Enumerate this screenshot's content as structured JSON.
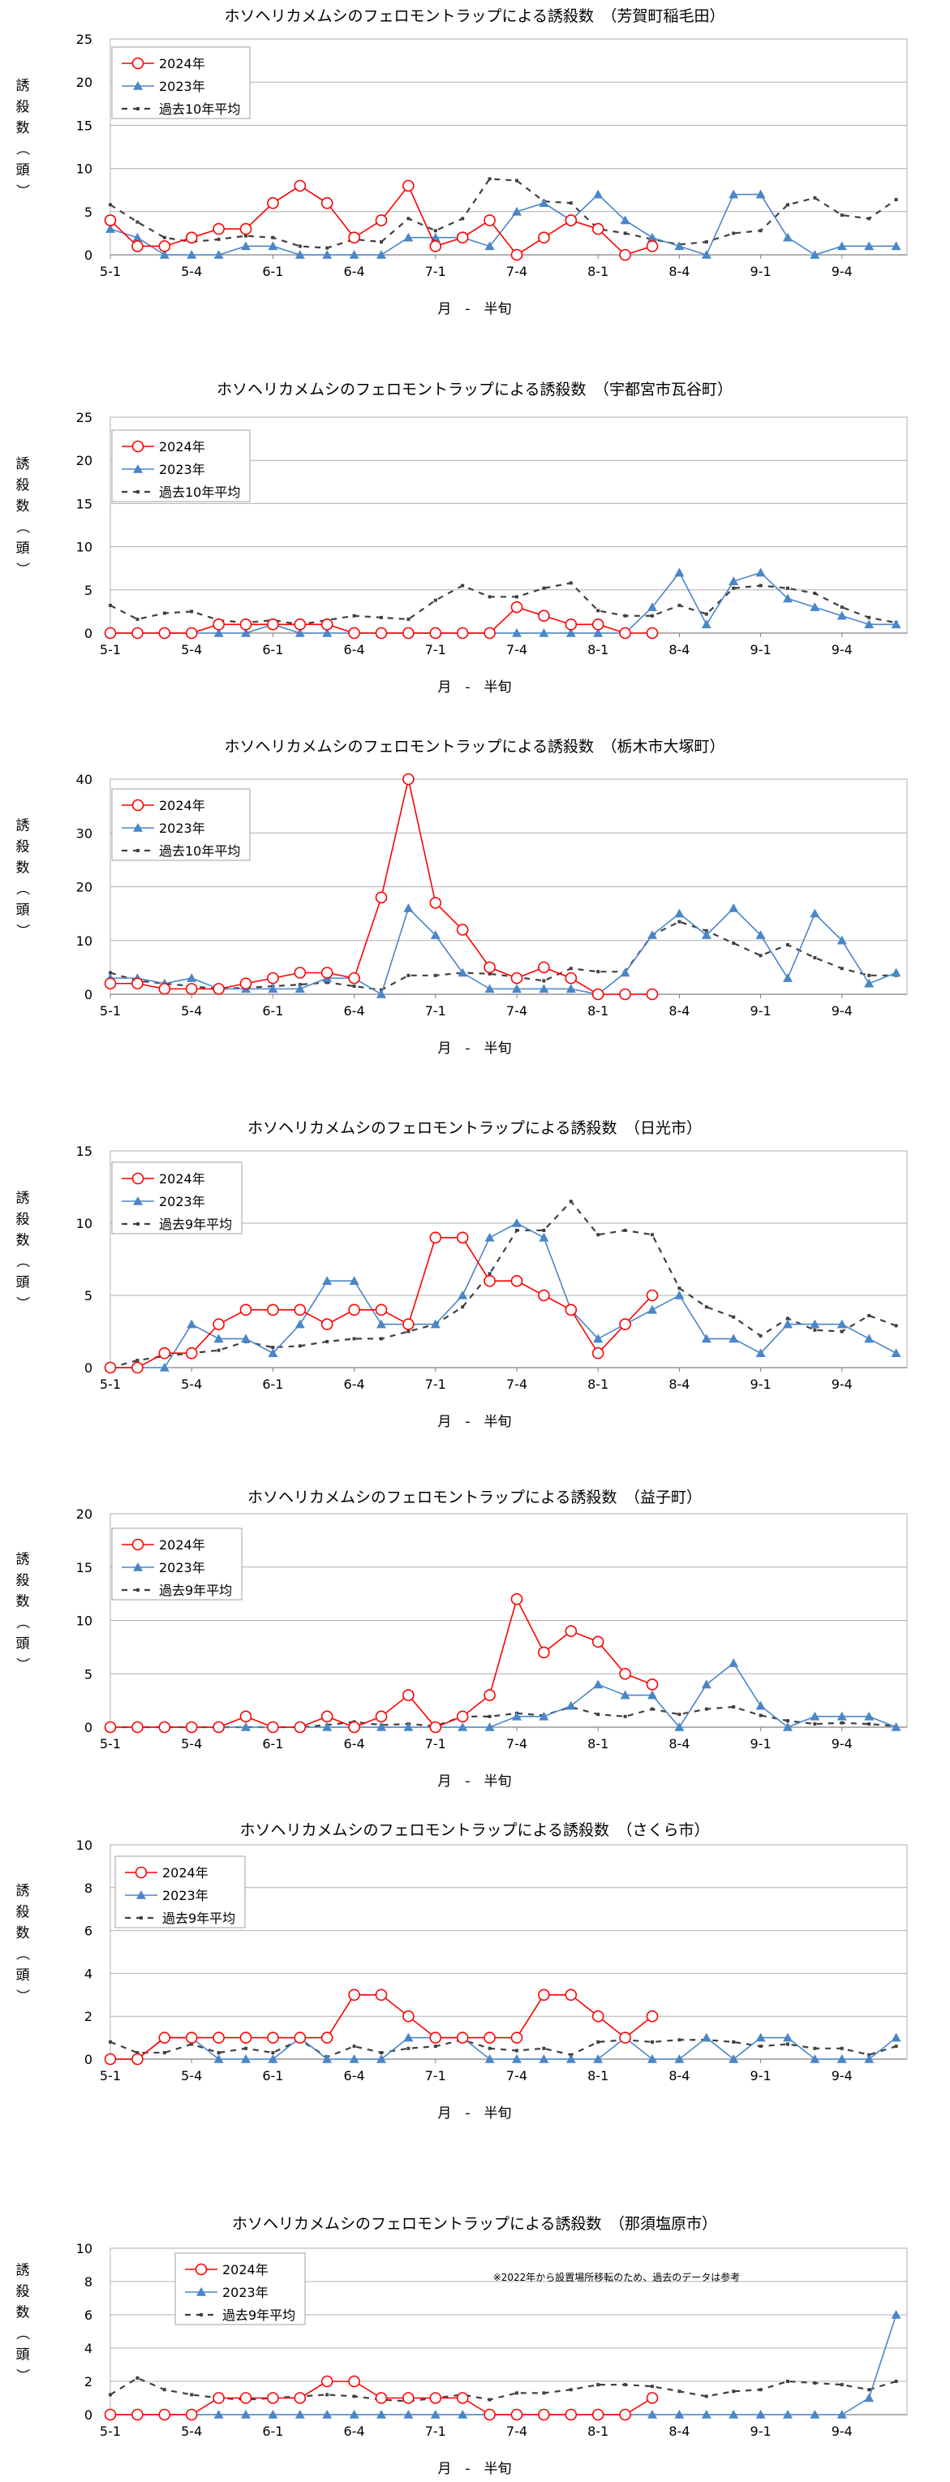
{
  "colors": {
    "y2024": "#ff0000",
    "y2023": "#4a86c8",
    "avg": "#404040",
    "grid": "#b0b0b0"
  },
  "chart_data": [
    {
      "type": "line",
      "title": "ホソヘリカメムシのフェロモントラップによる誘殺数　（芳賀町稲毛田）",
      "xlabel": "月　-　半旬",
      "ylabel": [
        "誘",
        "殺",
        "数",
        "（",
        "頭",
        "）"
      ],
      "ylim": [
        0,
        25
      ],
      "yticks": [
        "0",
        "5",
        "10",
        "15",
        "20",
        "25"
      ],
      "xticks": [
        "5-1",
        "5-4",
        "6-1",
        "6-4",
        "7-1",
        "7-4",
        "8-1",
        "8-4",
        "9-1",
        "9-4"
      ],
      "legend": "top-left",
      "note": "",
      "series": [
        {
          "name": "2024年",
          "values": [
            4,
            1,
            1,
            2,
            3,
            3,
            6,
            8,
            6,
            2,
            4,
            8,
            1,
            2,
            4,
            0,
            2,
            4,
            3,
            0,
            1
          ]
        },
        {
          "name": "2023年",
          "values": [
            3,
            2,
            0,
            0,
            0,
            1,
            1,
            0,
            0,
            0,
            0,
            2,
            2,
            2,
            1,
            5,
            6,
            4,
            7,
            4,
            2,
            1,
            0,
            7,
            7,
            2,
            0,
            1,
            1,
            1
          ]
        },
        {
          "name": "過去10年平均",
          "values": [
            5.8,
            3.8,
            2,
            1.5,
            1.8,
            2.2,
            2,
            1,
            0.8,
            1.8,
            1.5,
            4.2,
            2.8,
            4.2,
            8.8,
            8.6,
            6.2,
            6,
            3,
            2.5,
            1.8,
            1.2,
            1.5,
            2.5,
            2.8,
            5.8,
            6.6,
            4.6,
            4.2,
            6.4
          ]
        }
      ]
    },
    {
      "type": "line",
      "title": "ホソヘリカメムシのフェロモントラップによる誘殺数　（宇都宮市瓦谷町）",
      "xlabel": "月　-　半旬",
      "ylabel": [
        "誘",
        "殺",
        "数",
        "（",
        "頭",
        "）"
      ],
      "ylim": [
        0,
        25
      ],
      "yticks": [
        "0",
        "5",
        "10",
        "15",
        "20",
        "25"
      ],
      "xticks": [
        "5-1",
        "5-4",
        "6-1",
        "6-4",
        "7-1",
        "7-4",
        "8-1",
        "8-4",
        "9-1",
        "9-4"
      ],
      "legend": "top-left",
      "note": "",
      "series": [
        {
          "name": "2024年",
          "values": [
            0,
            0,
            0,
            0,
            1,
            1,
            1,
            1,
            1,
            0,
            0,
            0,
            0,
            0,
            0,
            3,
            2,
            1,
            1,
            0,
            0
          ]
        },
        {
          "name": "2023年",
          "values": [
            0,
            0,
            0,
            0,
            0,
            0,
            1,
            0,
            0,
            0,
            0,
            0,
            0,
            0,
            0,
            0,
            0,
            0,
            0,
            0,
            3,
            7,
            1,
            6,
            7,
            4,
            3,
            2,
            1,
            1
          ]
        },
        {
          "name": "過去10年平均",
          "values": [
            3.2,
            1.6,
            2.3,
            2.5,
            1.5,
            1.2,
            1.5,
            1,
            1.5,
            2,
            1.8,
            1.6,
            3.8,
            5.5,
            4.2,
            4.2,
            5.2,
            5.8,
            2.6,
            2.0,
            2.0,
            3.2,
            2.2,
            5.2,
            5.5,
            5.2,
            4.6,
            3.0,
            1.8,
            1.2
          ]
        }
      ]
    },
    {
      "type": "line",
      "title": "ホソヘリカメムシのフェロモントラップによる誘殺数　（栃木市大塚町）",
      "xlabel": "月　-　半旬",
      "ylabel": [
        "誘",
        "殺",
        "数",
        "（",
        "頭",
        "）"
      ],
      "ylim": [
        0,
        40
      ],
      "yticks": [
        "0",
        "10",
        "20",
        "30",
        "40"
      ],
      "xticks": [
        "5-1",
        "5-4",
        "6-1",
        "6-4",
        "7-1",
        "7-4",
        "8-1",
        "8-4",
        "9-1",
        "9-4"
      ],
      "legend": "top-left",
      "note": "",
      "series": [
        {
          "name": "2024年",
          "values": [
            2,
            2,
            1,
            1,
            1,
            2,
            3,
            4,
            4,
            3,
            18,
            40,
            17,
            12,
            5,
            3,
            5,
            3,
            0,
            0,
            0
          ]
        },
        {
          "name": "2023年",
          "values": [
            3,
            3,
            2,
            3,
            1,
            1,
            1,
            1,
            3,
            3,
            0,
            16,
            11,
            4,
            1,
            1,
            1,
            1,
            0,
            4,
            11,
            15,
            11,
            16,
            11,
            3,
            15,
            10,
            2,
            4
          ]
        },
        {
          "name": "過去10年平均",
          "values": [
            4,
            2.5,
            2,
            1.5,
            1,
            1.2,
            1.5,
            1.8,
            2.2,
            1.5,
            0.8,
            3.5,
            3.5,
            4,
            3.8,
            3.2,
            2.5,
            4.8,
            4.2,
            4.2,
            11,
            13.5,
            11.8,
            9.5,
            7.2,
            9.2,
            6.8,
            4.8,
            3.5,
            3.5
          ]
        }
      ]
    },
    {
      "type": "line",
      "title": "ホソヘリカメムシのフェロモントラップによる誘殺数　（日光市）",
      "xlabel": "月　-　半旬",
      "ylabel": [
        "誘",
        "殺",
        "数",
        "（",
        "頭",
        "）"
      ],
      "ylim": [
        0,
        15
      ],
      "yticks": [
        "0",
        "5",
        "10",
        "15"
      ],
      "xticks": [
        "5-1",
        "5-4",
        "6-1",
        "6-4",
        "7-1",
        "7-4",
        "8-1",
        "8-4",
        "9-1",
        "9-4"
      ],
      "legend": "top-left",
      "note": "",
      "series": [
        {
          "name": "2024年",
          "values": [
            0,
            0,
            1,
            1,
            3,
            4,
            4,
            4,
            3,
            4,
            4,
            3,
            9,
            9,
            6,
            6,
            5,
            4,
            1,
            3,
            5
          ]
        },
        {
          "name": "2023年",
          "values": [
            0,
            0,
            0,
            3,
            2,
            2,
            1,
            3,
            6,
            6,
            3,
            3,
            3,
            5,
            9,
            10,
            9,
            4,
            2,
            3,
            4,
            5,
            2,
            2,
            1,
            3,
            3,
            3,
            2,
            1
          ]
        },
        {
          "name": "過去9年平均",
          "values": [
            0,
            0.5,
            0.8,
            1.0,
            1.2,
            1.8,
            1.4,
            1.5,
            1.8,
            2,
            2,
            2.5,
            3.0,
            4.2,
            6.5,
            9.5,
            9.5,
            11.5,
            9.2,
            9.5,
            9.2,
            5.5,
            4.2,
            3.5,
            2.2,
            3.4,
            2.6,
            2.5,
            3.6,
            2.9
          ]
        }
      ]
    },
    {
      "type": "line",
      "title": "ホソヘリカメムシのフェロモントラップによる誘殺数　（益子町）",
      "xlabel": "月　-　半旬",
      "ylabel": [
        "誘",
        "殺",
        "数",
        "（",
        "頭",
        "）"
      ],
      "ylim": [
        0,
        20
      ],
      "yticks": [
        "0",
        "5",
        "10",
        "15",
        "20"
      ],
      "xticks": [
        "5-1",
        "5-4",
        "6-1",
        "6-4",
        "7-1",
        "7-4",
        "8-1",
        "8-4",
        "9-1",
        "9-4"
      ],
      "legend": "top-left",
      "note": "",
      "series": [
        {
          "name": "2024年",
          "values": [
            0,
            0,
            0,
            0,
            0,
            1,
            0,
            0,
            1,
            0,
            1,
            3,
            0,
            1,
            3,
            12,
            7,
            9,
            8,
            5,
            4
          ]
        },
        {
          "name": "2023年",
          "values": [
            0,
            0,
            0,
            0,
            0,
            0,
            0,
            0,
            0,
            0,
            0,
            0,
            0,
            0,
            0,
            1,
            1,
            2,
            4,
            3,
            3,
            0,
            4,
            6,
            2,
            0,
            1,
            1,
            1,
            0
          ]
        },
        {
          "name": "過去9年平均",
          "values": [
            0,
            0,
            0,
            0,
            0,
            0,
            0,
            0,
            0.2,
            0.5,
            0.2,
            0.3,
            0.1,
            1.0,
            1.0,
            1.3,
            1.1,
            1.9,
            1.2,
            1.0,
            1.7,
            1.2,
            1.7,
            1.9,
            1.1,
            0.6,
            0.3,
            0.4,
            0.3,
            0.1
          ]
        }
      ]
    },
    {
      "type": "line",
      "title": "ホソヘリカメムシのフェロモントラップによる誘殺数　（さくら市）",
      "xlabel": "月　-　半旬",
      "ylabel": [
        "誘",
        "殺",
        "数",
        "（",
        "頭",
        "）"
      ],
      "ylim": [
        0,
        10
      ],
      "yticks": [
        "0",
        "2",
        "4",
        "6",
        "8",
        "10"
      ],
      "xticks": [
        "5-1",
        "5-4",
        "6-1",
        "6-4",
        "7-1",
        "7-4",
        "8-1",
        "8-4",
        "9-1",
        "9-4"
      ],
      "legend": "top-left",
      "note": "",
      "series": [
        {
          "name": "2024年",
          "values": [
            0,
            0,
            1,
            1,
            1,
            1,
            1,
            1,
            1,
            3,
            3,
            2,
            1,
            1,
            1,
            1,
            3,
            3,
            2,
            1,
            2
          ]
        },
        {
          "name": "2023年",
          "values": [
            0,
            0,
            1,
            1,
            0,
            0,
            0,
            1,
            0,
            0,
            0,
            1,
            1,
            1,
            0,
            0,
            0,
            0,
            0,
            1,
            0,
            0,
            1,
            0,
            1,
            1,
            0,
            0,
            0,
            1
          ]
        },
        {
          "name": "過去9年平均",
          "values": [
            0.8,
            0.3,
            0.3,
            0.7,
            0.3,
            0.5,
            0.3,
            0.9,
            0.1,
            0.6,
            0.3,
            0.5,
            0.6,
            0.9,
            0.5,
            0.4,
            0.5,
            0.2,
            0.8,
            0.9,
            0.8,
            0.9,
            0.9,
            0.8,
            0.6,
            0.7,
            0.5,
            0.5,
            0.2,
            0.6
          ]
        }
      ]
    },
    {
      "type": "line",
      "title": "ホソヘリカメムシのフェロモントラップによる誘殺数　（那須塩原市）",
      "xlabel": "月　-　半旬",
      "ylabel": [
        "誘",
        "殺",
        "数",
        "（",
        "頭",
        "）"
      ],
      "ylim": [
        0,
        10
      ],
      "yticks": [
        "0",
        "2",
        "4",
        "6",
        "8",
        "10"
      ],
      "xticks": [
        "5-1",
        "5-4",
        "6-1",
        "6-4",
        "7-1",
        "7-4",
        "8-1",
        "8-4",
        "9-1",
        "9-4"
      ],
      "legend": "top-left",
      "note": "※2022年から設置場所移転のため、過去のデータは参考",
      "series": [
        {
          "name": "2024年",
          "values": [
            0,
            0,
            0,
            0,
            1,
            1,
            1,
            1,
            2,
            2,
            1,
            1,
            1,
            1,
            0,
            0,
            0,
            0,
            0,
            0,
            1
          ]
        },
        {
          "name": "2023年",
          "values": [
            0,
            0,
            0,
            0,
            0,
            0,
            0,
            0,
            0,
            0,
            0,
            0,
            0,
            0,
            0,
            0,
            0,
            0,
            0,
            0,
            0,
            0,
            0,
            0,
            0,
            0,
            0,
            0,
            1,
            6
          ]
        },
        {
          "name": "過去9年平均",
          "values": [
            1.2,
            2.2,
            1.5,
            1.2,
            1.0,
            0.9,
            1.0,
            1.1,
            1.2,
            1.1,
            0.9,
            0.8,
            1.0,
            1.2,
            0.9,
            1.3,
            1.3,
            1.5,
            1.8,
            1.8,
            1.7,
            1.4,
            1.1,
            1.4,
            1.5,
            2.0,
            1.9,
            1.8,
            1.5,
            2.0
          ]
        }
      ]
    }
  ]
}
